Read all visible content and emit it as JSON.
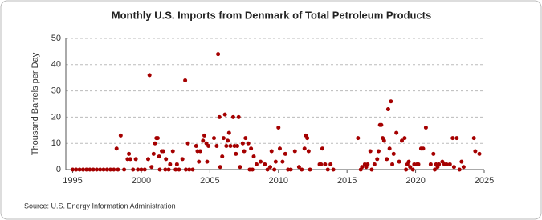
{
  "chart_data": {
    "type": "scatter",
    "title": "Monthly U.S. Imports from Denmark of Total Petroleum Products",
    "y_label": "Thousand Barrels per Day",
    "source": "Source: U.S. Energy Information Administration",
    "color": "#a50000",
    "grid": true,
    "xlim": [
      1994.5,
      2025
    ],
    "xticks": [
      1995,
      2000,
      2005,
      2010,
      2015,
      2020,
      2025
    ],
    "ylim": [
      0,
      50
    ],
    "yticks": [
      0,
      10,
      20,
      30,
      40,
      50
    ],
    "x": [
      1995,
      1995.25,
      1995.5,
      1995.75,
      1996,
      1996.25,
      1996.5,
      1996.75,
      1997,
      1997.25,
      1997.5,
      1997.75,
      1998,
      1998.2,
      1998.3,
      1998.5,
      1998.75,
      1999,
      1999.1,
      1999.2,
      1999.4,
      1999.6,
      1999.75,
      2000,
      2000.25,
      2000.5,
      2000.6,
      2000.75,
      2000.9,
      2001,
      2001.1,
      2001.2,
      2001.3,
      2001.35,
      2001.5,
      2001.6,
      2001.75,
      2001.8,
      2002,
      2002.1,
      2002.3,
      2002.5,
      2002.6,
      2002.75,
      2003,
      2003.2,
      2003.25,
      2003.4,
      2003.5,
      2003.75,
      2004,
      2004.1,
      2004.2,
      2004.3,
      2004.5,
      2004.6,
      2004.75,
      2004.8,
      2004.9,
      2005.3,
      2005.5,
      2005.6,
      2005.7,
      2005.75,
      2005.9,
      2006,
      2006.1,
      2006.2,
      2006.3,
      2006.4,
      2006.5,
      2006.7,
      2006.8,
      2006.9,
      2007,
      2007.1,
      2007.2,
      2007.4,
      2007.5,
      2007.6,
      2007.8,
      2007.9,
      2008,
      2008.1,
      2008.2,
      2008.4,
      2008.7,
      2009,
      2009.2,
      2009.4,
      2009.5,
      2009.7,
      2009.8,
      2010,
      2010.1,
      2010.3,
      2010.5,
      2010.7,
      2010.9,
      2011.2,
      2011.5,
      2011.7,
      2011.9,
      2012,
      2012.1,
      2012.2,
      2012.3,
      2013,
      2013.1,
      2013.2,
      2013.4,
      2013.6,
      2013.8,
      2014,
      2015.8,
      2016,
      2016.1,
      2016.3,
      2016.4,
      2016.5,
      2016.7,
      2016.8,
      2017,
      2017.2,
      2017.3,
      2017.4,
      2017.5,
      2017.6,
      2017.7,
      2017.9,
      2018,
      2018.1,
      2018.2,
      2018.3,
      2018.4,
      2018.6,
      2018.8,
      2019,
      2019.2,
      2019.3,
      2019.4,
      2019.5,
      2019.6,
      2019.8,
      2019.9,
      2020.1,
      2020.2,
      2020.4,
      2020.55,
      2020.75,
      2021.1,
      2021.3,
      2021.4,
      2021.5,
      2021.6,
      2021.7,
      2021.95,
      2022.1,
      2022.25,
      2022.5,
      2022.7,
      2022.8,
      2023,
      2023.2,
      2023.35,
      2023.5,
      2024.25,
      2024.35,
      2024.65
    ],
    "values": [
      0,
      0,
      0,
      0,
      0,
      0,
      0,
      0,
      0,
      0,
      0,
      0,
      0,
      8,
      0,
      13,
      0,
      4,
      6,
      4,
      0,
      4,
      0,
      0,
      0,
      4,
      36,
      1,
      6,
      10,
      12,
      12,
      5,
      0,
      7,
      7,
      0,
      4,
      0,
      2,
      7,
      0,
      2,
      0,
      4,
      34,
      0,
      10,
      0,
      0,
      9,
      7,
      3,
      7,
      11,
      13,
      10,
      3,
      9,
      12,
      9,
      44,
      20,
      1,
      5,
      12,
      21,
      9,
      11,
      14,
      9,
      20,
      9,
      6,
      9,
      20,
      1,
      10,
      7,
      12,
      10,
      0,
      8,
      0,
      5,
      2,
      3,
      2,
      0,
      1,
      7,
      0,
      3,
      16,
      8,
      3,
      6,
      0,
      0,
      7,
      1,
      0,
      8,
      13,
      12,
      7,
      0,
      2,
      2,
      8,
      2,
      0,
      2,
      0,
      12,
      0,
      1,
      2,
      1,
      2,
      7,
      0,
      2,
      4,
      7,
      17,
      17,
      12,
      11,
      4,
      23,
      8,
      26,
      2,
      6,
      14,
      3,
      11,
      12,
      0,
      2,
      3,
      1,
      0,
      2,
      2,
      2,
      8,
      8,
      16,
      2,
      6,
      0,
      2,
      1,
      2,
      3,
      2,
      2,
      2,
      12,
      1,
      12,
      0,
      3,
      1,
      12,
      7,
      6
    ]
  }
}
